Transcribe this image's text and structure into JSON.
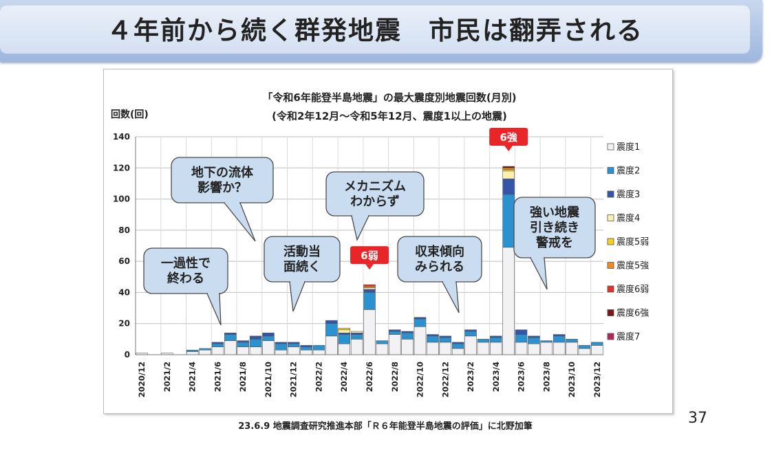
{
  "slide": {
    "title": "４年前から続く群発地震　市民は翻弄される",
    "source": "23.6.9 地震調査研究推進本部「Ｒ６年能登半島地震の評価」に北野加筆",
    "page_number": "37"
  },
  "chart_data": {
    "type": "bar",
    "stacked": true,
    "title": "「令和6年能登半島地震」の最大震度別地震回数(月別)",
    "subtitle": "(令和2年12月～令和5年12月、震度1以上の地震)",
    "ylabel": "回数(回)",
    "ylim": [
      0,
      140
    ],
    "yticks": [
      0,
      20,
      40,
      60,
      80,
      100,
      120,
      140
    ],
    "grid": true,
    "legend_position": "right",
    "categories": [
      "2020/12",
      "2021/1",
      "2021/2",
      "2021/3",
      "2021/4",
      "2021/5",
      "2021/6",
      "2021/7",
      "2021/8",
      "2021/9",
      "2021/10",
      "2021/11",
      "2021/12",
      "2022/1",
      "2022/2",
      "2022/3",
      "2022/4",
      "2022/5",
      "2022/6",
      "2022/7",
      "2022/8",
      "2022/9",
      "2022/10",
      "2022/11",
      "2022/12",
      "2023/1",
      "2023/2",
      "2023/3",
      "2023/4",
      "2023/5",
      "2023/6",
      "2023/7",
      "2023/8",
      "2023/9",
      "2023/10",
      "2023/11",
      "2023/12"
    ],
    "tick_labels": [
      "2020/12",
      "2021/2",
      "2021/4",
      "2021/6",
      "2021/8",
      "2021/10",
      "2021/12",
      "2022/2",
      "2022/4",
      "2022/6",
      "2022/8",
      "2022/10",
      "2022/12",
      "2023/2",
      "2023/4",
      "2023/6",
      "2023/8",
      "2023/10",
      "2023/12"
    ],
    "series": [
      {
        "name": "震度1",
        "color": "#f2f2f5",
        "values": [
          1,
          0,
          1,
          0,
          2,
          3,
          5,
          9,
          5,
          5,
          9,
          3,
          5,
          3,
          3,
          12,
          7,
          10,
          29,
          7,
          13,
          10,
          18,
          8,
          8,
          4,
          12,
          8,
          8,
          69,
          8,
          7,
          8,
          8,
          8,
          4,
          6
        ]
      },
      {
        "name": "震度2",
        "color": "#2b91cf",
        "values": [
          0,
          0,
          0,
          0,
          1,
          1,
          2,
          4,
          3,
          5,
          3,
          4,
          2,
          2,
          3,
          8,
          6,
          3,
          11,
          2,
          2,
          4,
          5,
          4,
          3,
          3,
          3,
          2,
          3,
          34,
          5,
          4,
          1,
          4,
          2,
          2,
          2
        ]
      },
      {
        "name": "震度3",
        "color": "#3556a8",
        "values": [
          0,
          0,
          0,
          0,
          0,
          0,
          1,
          1,
          1,
          2,
          2,
          1,
          1,
          1,
          0,
          2,
          1,
          1,
          2,
          0,
          1,
          1,
          1,
          1,
          1,
          1,
          1,
          0,
          1,
          10,
          3,
          1,
          0,
          1,
          0,
          0,
          0
        ]
      },
      {
        "name": "震度4",
        "color": "#fff0b0",
        "values": [
          0,
          0,
          0,
          0,
          0,
          0,
          0,
          0,
          0,
          0,
          0,
          0,
          0,
          0,
          0,
          0,
          2,
          1,
          1,
          0,
          0,
          0,
          0,
          0,
          0,
          0,
          0,
          0,
          0,
          5,
          0,
          0,
          0,
          0,
          0,
          0,
          0
        ]
      },
      {
        "name": "震度5弱",
        "color": "#f5d21e",
        "values": [
          0,
          0,
          0,
          0,
          0,
          0,
          0,
          0,
          0,
          0,
          0,
          0,
          0,
          0,
          0,
          0,
          1,
          0,
          0,
          0,
          0,
          0,
          0,
          0,
          0,
          0,
          0,
          0,
          0,
          1,
          0,
          0,
          0,
          0,
          0,
          0,
          0
        ]
      },
      {
        "name": "震度5強",
        "color": "#f08a24",
        "values": [
          0,
          0,
          0,
          0,
          0,
          0,
          0,
          0,
          0,
          0,
          0,
          0,
          0,
          0,
          0,
          0,
          0,
          0,
          1,
          0,
          0,
          0,
          0,
          0,
          0,
          0,
          0,
          0,
          0,
          1,
          0,
          0,
          0,
          0,
          0,
          0,
          0
        ]
      },
      {
        "name": "震度6弱",
        "color": "#e53228",
        "values": [
          0,
          0,
          0,
          0,
          0,
          0,
          0,
          0,
          0,
          0,
          0,
          0,
          0,
          0,
          0,
          0,
          0,
          0,
          1,
          0,
          0,
          0,
          0,
          0,
          0,
          0,
          0,
          0,
          0,
          0,
          0,
          0,
          0,
          0,
          0,
          0,
          0
        ]
      },
      {
        "name": "震度6強",
        "color": "#7a1518",
        "values": [
          0,
          0,
          0,
          0,
          0,
          0,
          0,
          0,
          0,
          0,
          0,
          0,
          0,
          0,
          0,
          0,
          0,
          0,
          0,
          0,
          0,
          0,
          0,
          0,
          0,
          0,
          0,
          0,
          0,
          1,
          0,
          0,
          0,
          0,
          0,
          0,
          0
        ]
      },
      {
        "name": "震度7",
        "color": "#b0285a",
        "values": [
          0,
          0,
          0,
          0,
          0,
          0,
          0,
          0,
          0,
          0,
          0,
          0,
          0,
          0,
          0,
          0,
          0,
          0,
          0,
          0,
          0,
          0,
          0,
          0,
          0,
          0,
          0,
          0,
          0,
          0,
          0,
          0,
          0,
          0,
          0,
          0,
          0
        ]
      }
    ],
    "markers": [
      {
        "text": "6弱",
        "category": "2022/6",
        "color": "#e8262a"
      },
      {
        "text": "6強",
        "category": "2023/5",
        "color": "#e8262a"
      }
    ],
    "callouts": [
      {
        "lines": [
          "一過性で",
          "終わる"
        ]
      },
      {
        "lines": [
          "地下の流体",
          "影響か？"
        ]
      },
      {
        "lines": [
          "活動当",
          "面続く"
        ]
      },
      {
        "lines": [
          "メカニズム",
          "わからず"
        ]
      },
      {
        "lines": [
          "収束傾向",
          "みられる"
        ]
      },
      {
        "lines": [
          "強い地震",
          "引き続き",
          "警戒を"
        ]
      }
    ]
  }
}
